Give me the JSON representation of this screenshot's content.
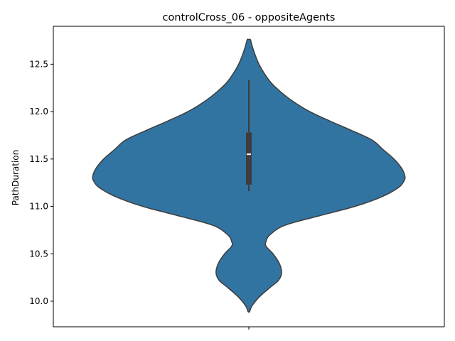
{
  "chart_data": {
    "type": "violin",
    "title": "controlCross_06 - oppositeAgents",
    "xlabel": "",
    "ylabel": "PathDuration",
    "ylim": [
      9.73,
      12.9
    ],
    "yticks": [
      {
        "value": 10.0,
        "label": "10.0"
      },
      {
        "value": 10.5,
        "label": "10.5"
      },
      {
        "value": 11.0,
        "label": "11.0"
      },
      {
        "value": 11.5,
        "label": "11.5"
      },
      {
        "value": 12.0,
        "label": "12.0"
      },
      {
        "value": 12.5,
        "label": "12.5"
      }
    ],
    "grid": false,
    "violin_color": "#3274a1",
    "outline_color": "#3d3d3d",
    "box_color": "#3d3d3d",
    "median_color": "#ffffff",
    "density": [
      {
        "y": 9.89,
        "w": 0.005
      },
      {
        "y": 9.95,
        "w": 0.02
      },
      {
        "y": 10.05,
        "w": 0.07
      },
      {
        "y": 10.15,
        "w": 0.14
      },
      {
        "y": 10.22,
        "w": 0.19
      },
      {
        "y": 10.3,
        "w": 0.21
      },
      {
        "y": 10.4,
        "w": 0.195
      },
      {
        "y": 10.5,
        "w": 0.155
      },
      {
        "y": 10.58,
        "w": 0.11
      },
      {
        "y": 10.63,
        "w": 0.11
      },
      {
        "y": 10.7,
        "w": 0.135
      },
      {
        "y": 10.8,
        "w": 0.23
      },
      {
        "y": 10.9,
        "w": 0.45
      },
      {
        "y": 11.0,
        "w": 0.68
      },
      {
        "y": 11.1,
        "w": 0.85
      },
      {
        "y": 11.2,
        "w": 0.96
      },
      {
        "y": 11.27,
        "w": 0.995
      },
      {
        "y": 11.32,
        "w": 1.0
      },
      {
        "y": 11.4,
        "w": 0.98
      },
      {
        "y": 11.5,
        "w": 0.93
      },
      {
        "y": 11.6,
        "w": 0.86
      },
      {
        "y": 11.7,
        "w": 0.79
      },
      {
        "y": 11.8,
        "w": 0.66
      },
      {
        "y": 11.9,
        "w": 0.52
      },
      {
        "y": 12.0,
        "w": 0.39
      },
      {
        "y": 12.1,
        "w": 0.29
      },
      {
        "y": 12.2,
        "w": 0.21
      },
      {
        "y": 12.3,
        "w": 0.145
      },
      {
        "y": 12.4,
        "w": 0.1
      },
      {
        "y": 12.5,
        "w": 0.065
      },
      {
        "y": 12.6,
        "w": 0.04
      },
      {
        "y": 12.7,
        "w": 0.02
      },
      {
        "y": 12.76,
        "w": 0.01
      }
    ],
    "box": {
      "whisker_low": 11.16,
      "q1": 11.23,
      "median": 11.55,
      "q3": 11.78,
      "whisker_high": 12.33
    }
  }
}
